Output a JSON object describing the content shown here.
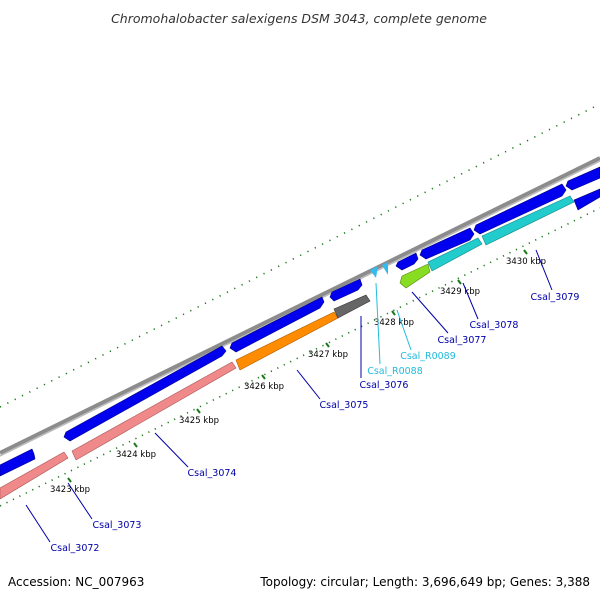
{
  "title": "Chromohalobacter salexigens DSM 3043, complete genome",
  "footer": {
    "accession": "Accession: NC_007963",
    "summary": "Topology: circular; Length: 3,696,649 bp; Genes: 3,388"
  },
  "ticks": [
    "3423 kbp",
    "3424 kbp",
    "3425 kbp",
    "3426 kbp",
    "3427 kbp",
    "3428 kbp",
    "3429 kbp",
    "3430 kbp"
  ],
  "genes": [
    {
      "label": "Csal_3072",
      "color": "#0000aa"
    },
    {
      "label": "Csal_3073",
      "color": "#0000aa"
    },
    {
      "label": "Csal_3074",
      "color": "#0000aa"
    },
    {
      "label": "Csal_3075",
      "color": "#0000aa"
    },
    {
      "label": "Csal_3076",
      "color": "#0000aa"
    },
    {
      "label": "Csal_R0088",
      "color": "#22bbdd"
    },
    {
      "label": "Csal_R0089",
      "color": "#22bbdd"
    },
    {
      "label": "Csal_3077",
      "color": "#0000aa"
    },
    {
      "label": "Csal_3078",
      "color": "#0000aa"
    },
    {
      "label": "Csal_3079",
      "color": "#0000aa"
    }
  ],
  "colors": {
    "backbone": "#888888",
    "cds": "#0000ee",
    "salmon": "#f08a8a",
    "orange": "#ff8c00",
    "gray": "#666666",
    "cyan": "#22cccc",
    "lime": "#88dd22",
    "rna": "#33bbee",
    "tick_marks": "#1a7a1a"
  }
}
